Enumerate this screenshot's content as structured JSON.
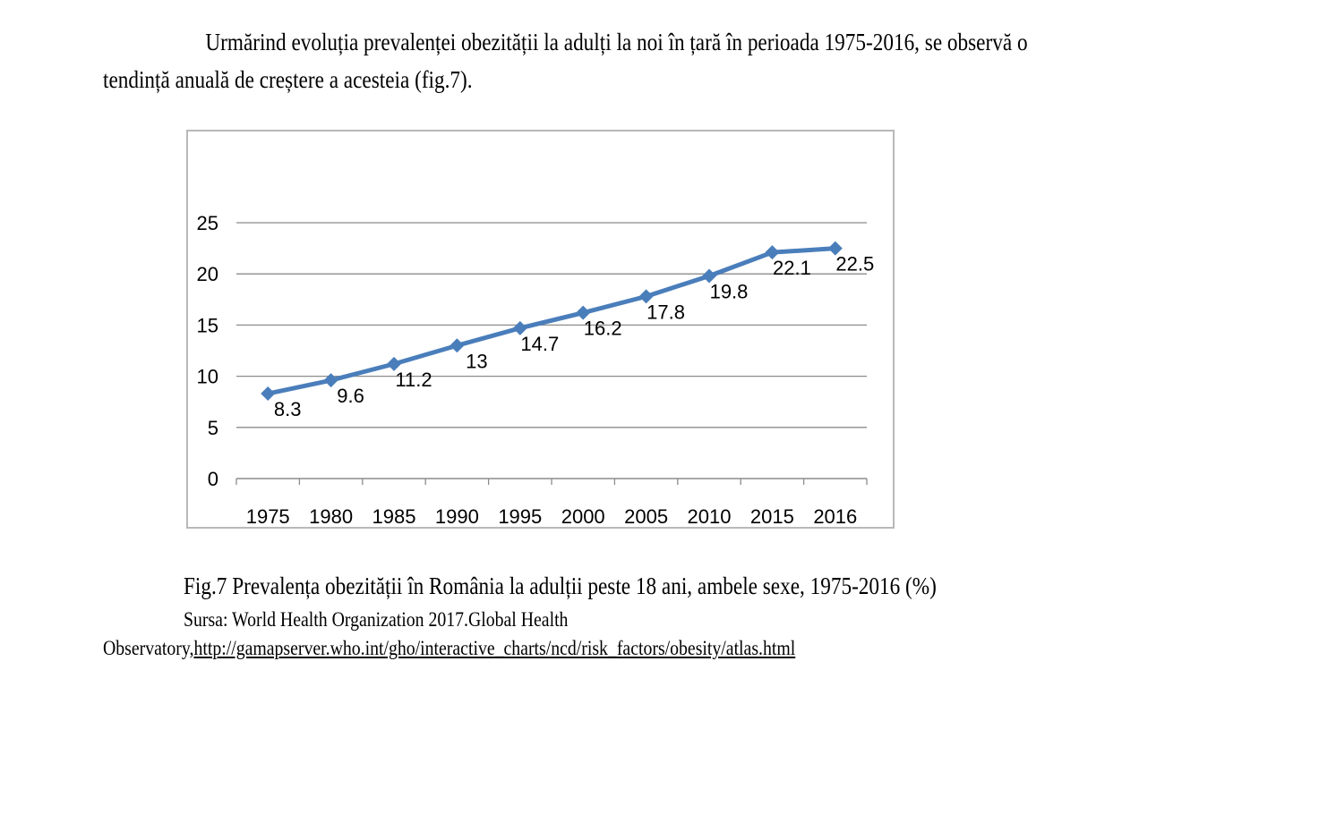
{
  "intro": {
    "line1": "Urmărind evoluția prevalenței obezității la adulți la noi în țară în perioada 1975-2016, se observă o",
    "line2": "tendință anuală de creștere a acesteia (fig.7)."
  },
  "caption": "Fig.7 Prevalența obezității în România la adulții peste 18 ani, ambele sexe, 1975-2016 (%)",
  "source": {
    "line1": "Sursa: World Health Organization 2017.Global Health",
    "prefix": "Observatory,",
    "link": "http://gamapserver.who.int/gho/interactive_charts/ncd/risk_factors/obesity/atlas.html"
  },
  "colors": {
    "series": "#4a7ebb",
    "grid": "#8c8c8c",
    "border": "#b8b8b8"
  },
  "chart_data": {
    "type": "line",
    "categories": [
      "1975",
      "1980",
      "1985",
      "1990",
      "1995",
      "2000",
      "2005",
      "2010",
      "2015",
      "2016"
    ],
    "series": [
      {
        "values": [
          8.3,
          9.6,
          11.2,
          13,
          14.7,
          16.2,
          17.8,
          19.8,
          22.1,
          22.5
        ],
        "labels": [
          "8.3",
          "9.6",
          "11.2",
          "13",
          "14.7",
          "16.2",
          "17.8",
          "19.8",
          "22.1",
          "22.5"
        ],
        "marker": "diamond"
      }
    ],
    "title": "",
    "xlabel": "",
    "ylabel": "",
    "ylim": [
      0,
      25
    ],
    "yticks": [
      "0",
      "5",
      "10",
      "15",
      "20",
      "25"
    ],
    "grid": true,
    "legend": "none"
  }
}
